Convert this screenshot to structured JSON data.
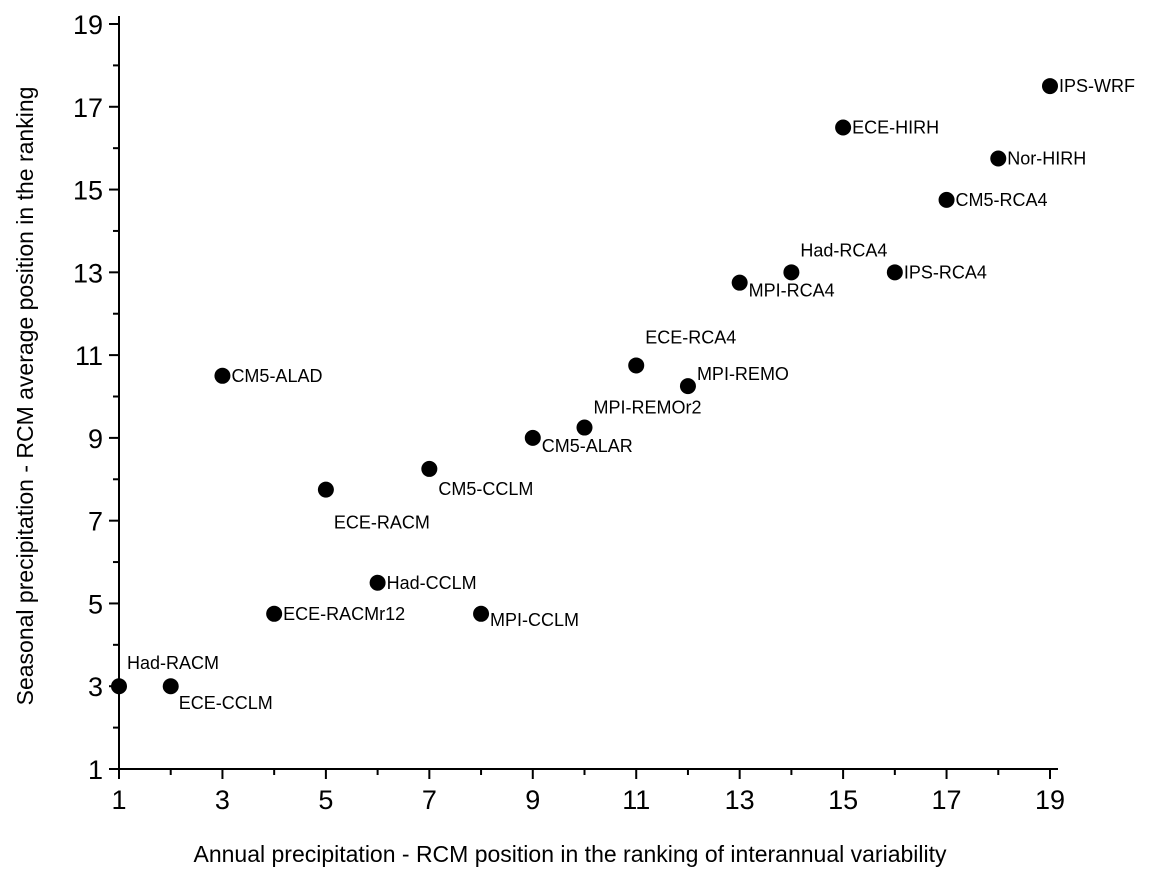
{
  "chart_data": {
    "type": "scatter",
    "title": "",
    "xlabel": "Annual precipitation - RCM position in the ranking of interannual variability",
    "ylabel": "Seasonal precipitation - RCM average position in the ranking",
    "xlim": [
      1,
      19
    ],
    "ylim": [
      1,
      19
    ],
    "xticks": [
      1,
      3,
      5,
      7,
      9,
      11,
      13,
      15,
      17,
      19
    ],
    "yticks": [
      1,
      3,
      5,
      7,
      9,
      11,
      13,
      15,
      17,
      19
    ],
    "grid": false,
    "marker_color": "#000000",
    "points": [
      {
        "label": "IPS-WRF",
        "x": 19,
        "y": 17.5
      },
      {
        "label": "ECE-HIRH",
        "x": 15,
        "y": 16.5
      },
      {
        "label": "Nor-HIRH",
        "x": 18,
        "y": 15.75
      },
      {
        "label": "CM5-RCA4",
        "x": 17,
        "y": 14.75
      },
      {
        "label": "Had-RCA4",
        "x": 14,
        "y": 13
      },
      {
        "label": "IPS-RCA4",
        "x": 16,
        "y": 13
      },
      {
        "label": "MPI-RCA4",
        "x": 13,
        "y": 12.75
      },
      {
        "label": "ECE-RCA4",
        "x": 11,
        "y": 10.75
      },
      {
        "label": "MPI-REMO",
        "x": 12,
        "y": 10.25
      },
      {
        "label": "CM5-ALAD",
        "x": 3,
        "y": 10.5
      },
      {
        "label": "MPI-REMOr2",
        "x": 10,
        "y": 9.25
      },
      {
        "label": "CM5-ALAR",
        "x": 9,
        "y": 9
      },
      {
        "label": "CM5-CCLM",
        "x": 7,
        "y": 8.25
      },
      {
        "label": "ECE-RACM",
        "x": 5,
        "y": 7.75
      },
      {
        "label": "Had-CCLM",
        "x": 6,
        "y": 5.5
      },
      {
        "label": "ECE-RACMr12",
        "x": 4,
        "y": 4.75
      },
      {
        "label": "MPI-CCLM",
        "x": 8,
        "y": 4.75
      },
      {
        "label": "Had-RACM",
        "x": 1,
        "y": 3
      },
      {
        "label": "ECE-CCLM",
        "x": 2,
        "y": 3
      }
    ]
  }
}
